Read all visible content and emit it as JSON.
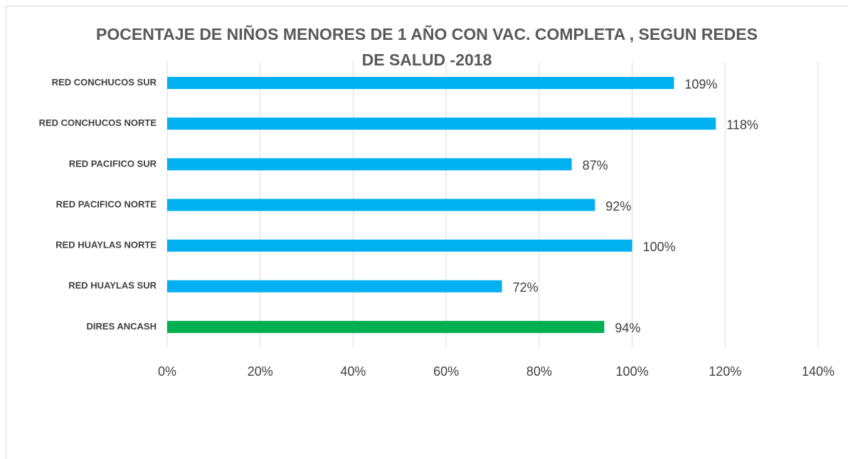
{
  "chart_data": {
    "type": "barh",
    "title": "POCENTAJE DE NIÑOS MENORES  DE 1 AÑO CON VAC. COMPLETA , SEGUN REDES DE SALUD -2018",
    "categories": [
      "RED CONCHUCOS SUR",
      "RED CONCHUCOS NORTE",
      "RED PACIFICO SUR",
      "RED PACIFICO NORTE",
      "RED HUAYLAS NORTE",
      "RED HUAYLAS SUR",
      "DIRES ANCASH"
    ],
    "values": [
      109,
      118,
      87,
      92,
      100,
      72,
      94
    ],
    "value_labels": [
      "109%",
      "118%",
      "87%",
      "92%",
      "100%",
      "72%",
      "94%"
    ],
    "colors": [
      "#00b0f0",
      "#00b0f0",
      "#00b0f0",
      "#00b0f0",
      "#00b0f0",
      "#00b0f0",
      "#00b050"
    ],
    "xlim": [
      0,
      140
    ],
    "xticks": [
      {
        "value": 0,
        "label": "0%"
      },
      {
        "value": 20,
        "label": "20%"
      },
      {
        "value": 40,
        "label": "40%"
      },
      {
        "value": 60,
        "label": "60%"
      },
      {
        "value": 80,
        "label": "80%"
      },
      {
        "value": 100,
        "label": "100%"
      },
      {
        "value": 120,
        "label": "120%"
      },
      {
        "value": 140,
        "label": "140%"
      }
    ],
    "grid": true
  }
}
